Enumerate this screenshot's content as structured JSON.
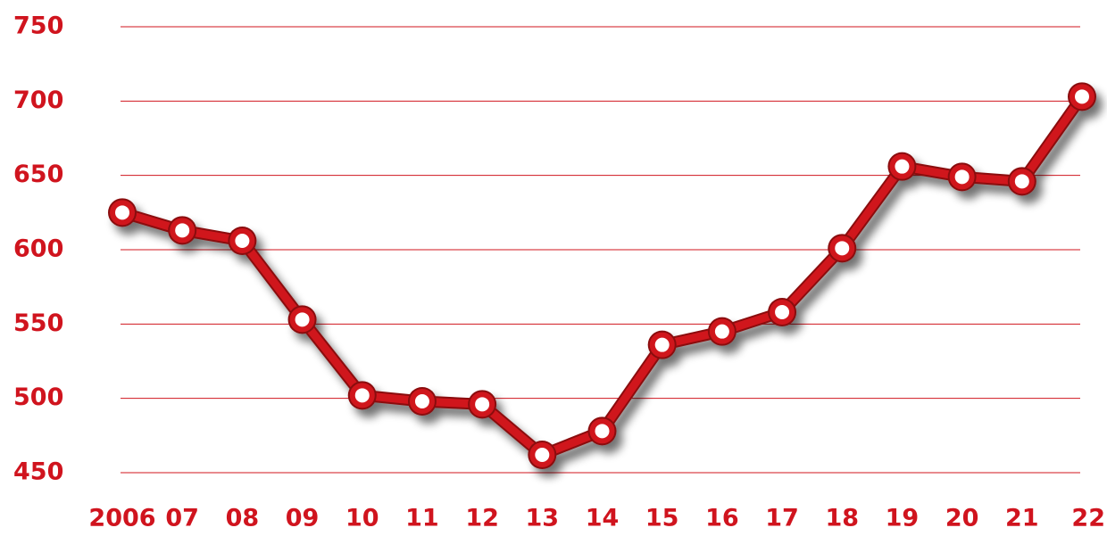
{
  "chart_data": {
    "type": "line",
    "categories": [
      "2006",
      "07",
      "08",
      "09",
      "10",
      "11",
      "12",
      "13",
      "14",
      "15",
      "16",
      "17",
      "18",
      "19",
      "20",
      "21",
      "22"
    ],
    "series": [
      {
        "name": null,
        "color": "#d0141e",
        "values": [
          625,
          613,
          606,
          553,
          502,
          498,
          496,
          462,
          478,
          536,
          545,
          558,
          601,
          656,
          649,
          646,
          703
        ]
      }
    ],
    "ylim": [
      450,
      750
    ],
    "yticks": [
      450,
      500,
      550,
      600,
      650,
      700,
      750
    ],
    "grid": true
  }
}
